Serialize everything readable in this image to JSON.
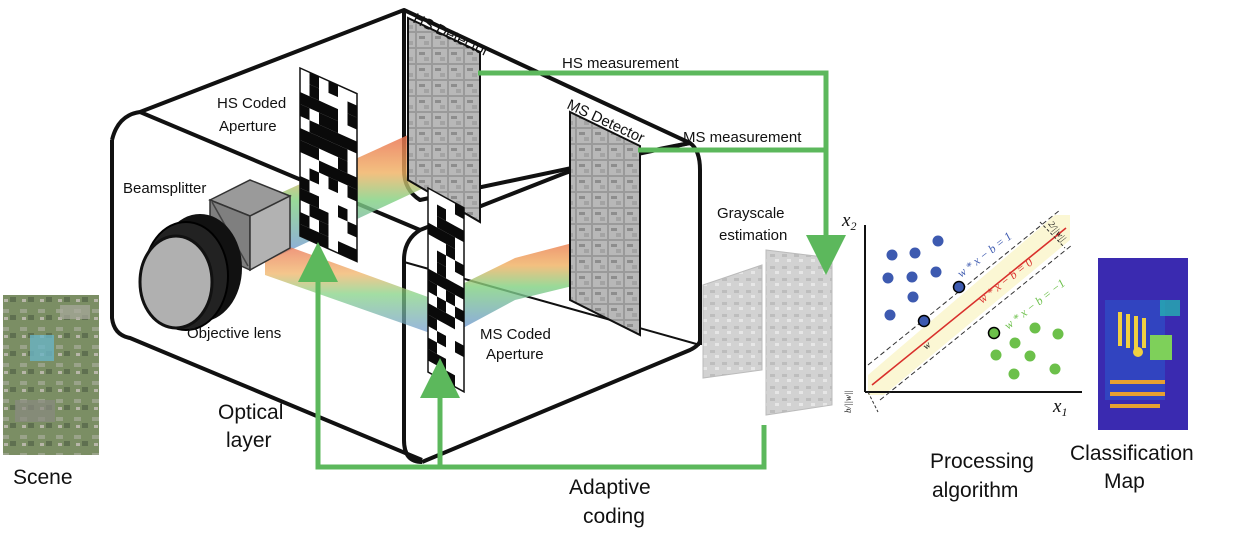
{
  "labels": {
    "scene": "Scene",
    "optical_layer_line1": "Optical",
    "optical_layer_line2": "layer",
    "hs_coded_aperture_line1": "HS Coded",
    "hs_coded_aperture_line2": "Aperture",
    "beamsplitter": "Beamsplitter",
    "objective_lens": "Objective lens",
    "ms_coded_aperture_line1": "MS Coded",
    "ms_coded_aperture_line2": "Aperture",
    "hs_detector": "HS Detector",
    "ms_detector": "MS Detector",
    "hs_measurement": "HS measurement",
    "ms_measurement": "MS measurement",
    "grayscale_line1": "Grayscale",
    "grayscale_line2": "estimation",
    "adaptive_coding_line1": "Adaptive",
    "adaptive_coding_line2": "coding",
    "processing_line1": "Processing",
    "processing_line2": "algorithm",
    "classification_line1": "Classification",
    "classification_line2": "Map"
  },
  "svm_plot": {
    "x_axis": "x",
    "x_axis_sub": "1",
    "y_axis": "x",
    "y_axis_sub": "2",
    "line_upper": "w * x − b = 1",
    "line_center": "w * x − b = 0",
    "line_lower": "w * x − b = −1",
    "margin_label": "2/||w||",
    "w_label": "w",
    "offset_label": "b/||w||"
  },
  "colors": {
    "feedback_arrow": "#5cb85c",
    "beam_red": "#e8604a",
    "beam_green": "#7fd07f",
    "beam_blue": "#6e8fe0",
    "class_blue": "#3d5ab0",
    "class_green": "#6cc04a",
    "hyperplane": "#d9302c",
    "margin_band": "#fbf7d4"
  }
}
